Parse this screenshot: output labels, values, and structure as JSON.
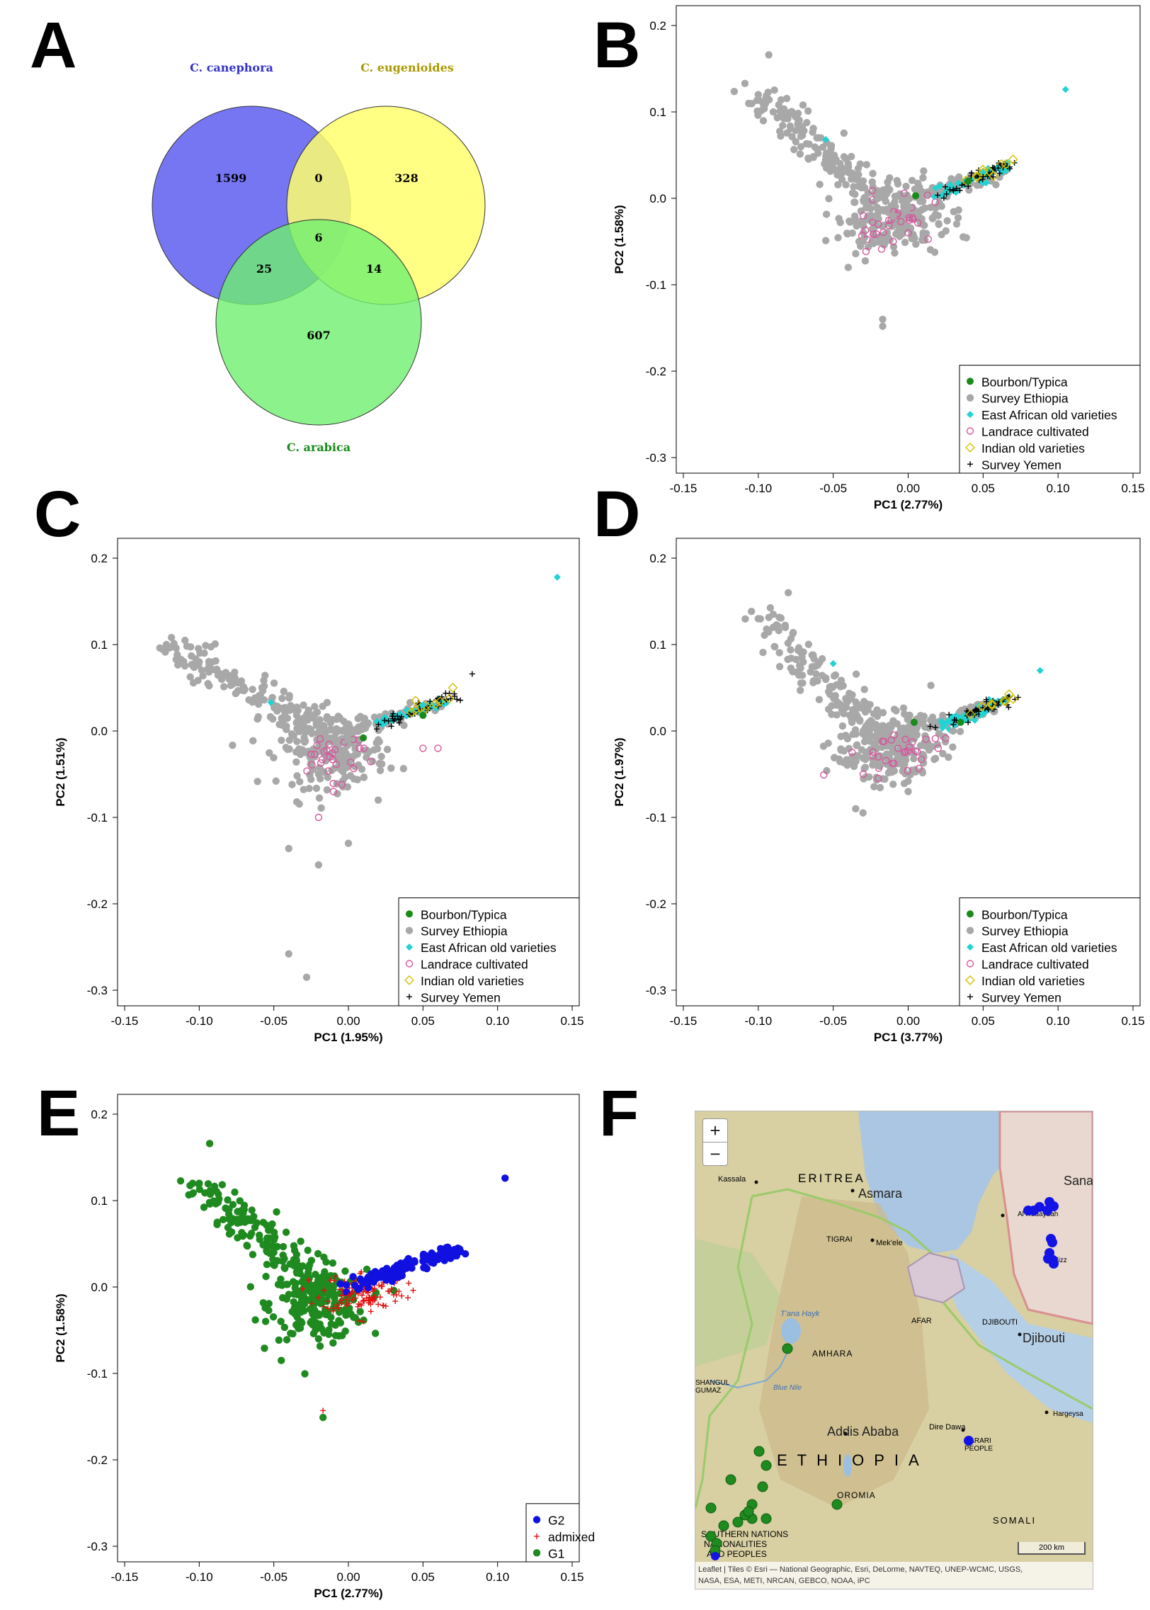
{
  "panels": {
    "A": "A",
    "B": "B",
    "C": "C",
    "D": "D",
    "E": "E",
    "F": "F"
  },
  "venn": {
    "labels": [
      "C. canephora",
      "C. eugenioides",
      "C. arabica"
    ],
    "label_colors": [
      "#3333cc",
      "#b3a300",
      "#1a8a1a"
    ],
    "counts": {
      "canephora_only": "1599",
      "eugenioides_only": "328",
      "arabica_only": "607",
      "can_eug": "0",
      "can_ara": "25",
      "eug_ara": "14",
      "all": "6"
    },
    "colors": {
      "canephora": "#6f6ff2",
      "eugenioides": "#ffff6f",
      "arabica": "#6ff06f"
    }
  },
  "legend_pca": [
    "Bourbon/Typica",
    "Survey Ethiopia",
    "East African old varieties",
    "Landrace cultivated",
    "Indian old varieties",
    "Survey Yemen"
  ],
  "legend_groups": [
    "G2",
    "admixed",
    "G1"
  ],
  "colors": {
    "bourbon": "#1a8a1a",
    "ethiopia": "#a8a8a8",
    "eastafrica": "#22d3d3",
    "landrace": "#d6579e",
    "indian": "#d4c000",
    "yemen": "#000000",
    "g1": "#1f8a1f",
    "g2": "#1010e0",
    "admixed": "#e01010"
  },
  "chart_data": [
    {
      "panel": "B",
      "type": "scatter",
      "xlabel": "PC1 (2.77%)",
      "ylabel": "PC2 (1.58%)",
      "xlim": [
        -0.15,
        0.15
      ],
      "ylim": [
        -0.3,
        0.2
      ],
      "xticks": [
        "-0.15",
        "-0.10",
        "-0.05",
        "0.00",
        "0.05",
        "0.10",
        "0.15"
      ],
      "yticks": [
        "-0.3",
        "-0.2",
        "-0.1",
        "0.0",
        "0.1",
        "0.2"
      ],
      "legend_position": "bottom-right",
      "series": [
        {
          "name": "Survey Ethiopia",
          "points": [
            [
              -0.093,
              0.166
            ],
            [
              -0.1,
              0.12
            ],
            [
              -0.09,
              0.1
            ],
            [
              -0.06,
              0.07
            ],
            [
              -0.04,
              0.04
            ],
            [
              -0.03,
              0.02
            ],
            [
              -0.02,
              0.0
            ],
            [
              -0.01,
              -0.02
            ],
            [
              0.0,
              -0.01
            ],
            [
              -0.03,
              -0.05
            ],
            [
              -0.04,
              -0.08
            ],
            [
              -0.017,
              -0.14
            ],
            [
              -0.017,
              -0.148
            ],
            [
              0.01,
              -0.04
            ],
            [
              0.02,
              -0.02
            ]
          ]
        },
        {
          "name": "East African old varieties",
          "points": [
            [
              0.105,
              0.126
            ],
            [
              -0.055,
              0.068
            ],
            [
              0.04,
              0.02
            ],
            [
              0.05,
              0.03
            ],
            [
              0.06,
              0.035
            ]
          ]
        },
        {
          "name": "Landrace cultivated",
          "points": [
            [
              -0.02,
              -0.03
            ],
            [
              -0.01,
              -0.05
            ],
            [
              -0.03,
              -0.02
            ],
            [
              0.0,
              -0.04
            ]
          ]
        },
        {
          "name": "Indian old varieties",
          "points": [
            [
              0.07,
              0.045
            ],
            [
              0.05,
              0.03
            ]
          ]
        },
        {
          "name": "Survey Yemen",
          "points": [
            [
              0.03,
              0.01
            ],
            [
              0.05,
              0.025
            ],
            [
              0.06,
              0.035
            ]
          ]
        },
        {
          "name": "Bourbon/Typica",
          "points": [
            [
              0.005,
              0.003
            ],
            [
              0.04,
              0.02
            ]
          ]
        }
      ]
    },
    {
      "panel": "C",
      "type": "scatter",
      "xlabel": "PC1 (1.95%)",
      "ylabel": "PC2 (1.51%)",
      "xlim": [
        -0.15,
        0.15
      ],
      "ylim": [
        -0.3,
        0.2
      ],
      "xticks": [
        "-0.15",
        "-0.10",
        "-0.05",
        "0.00",
        "0.05",
        "0.10",
        "0.15"
      ],
      "yticks": [
        "-0.3",
        "-0.2",
        "-0.1",
        "0.0",
        "0.1",
        "0.2"
      ],
      "legend_position": "bottom-right",
      "series": [
        {
          "name": "Survey Ethiopia",
          "points": [
            [
              -0.122,
              0.1
            ],
            [
              -0.1,
              0.08
            ],
            [
              -0.08,
              0.06
            ],
            [
              -0.05,
              0.03
            ],
            [
              -0.03,
              0.0
            ],
            [
              0.0,
              -0.01
            ],
            [
              -0.02,
              -0.05
            ],
            [
              -0.028,
              -0.285
            ],
            [
              -0.04,
              -0.258
            ],
            [
              -0.02,
              -0.155
            ],
            [
              0.0,
              -0.13
            ],
            [
              -0.04,
              -0.136
            ],
            [
              0.02,
              -0.08
            ]
          ]
        },
        {
          "name": "East African old varieties",
          "points": [
            [
              0.14,
              0.178
            ],
            [
              -0.052,
              0.033
            ],
            [
              0.05,
              0.03
            ]
          ]
        },
        {
          "name": "Landrace cultivated",
          "points": [
            [
              -0.01,
              -0.07
            ],
            [
              -0.02,
              -0.1
            ],
            [
              0.05,
              -0.02
            ],
            [
              0.06,
              -0.02
            ]
          ]
        },
        {
          "name": "Indian old varieties",
          "points": [
            [
              0.07,
              0.05
            ],
            [
              0.045,
              0.035
            ]
          ]
        },
        {
          "name": "Survey Yemen",
          "points": [
            [
              0.083,
              0.066
            ],
            [
              0.03,
              0.02
            ]
          ]
        },
        {
          "name": "Bourbon/Typica",
          "points": [
            [
              0.01,
              -0.008
            ],
            [
              0.05,
              0.018
            ]
          ]
        }
      ]
    },
    {
      "panel": "D",
      "type": "scatter",
      "xlabel": "PC1 (3.77%)",
      "ylabel": "PC2 (1.97%)",
      "xlim": [
        -0.15,
        0.15
      ],
      "ylim": [
        -0.3,
        0.2
      ],
      "xticks": [
        "-0.15",
        "-0.10",
        "-0.05",
        "0.00",
        "0.05",
        "0.10",
        "0.15"
      ],
      "yticks": [
        "-0.3",
        "-0.2",
        "-0.1",
        "0.0",
        "0.1",
        "0.2"
      ],
      "legend_position": "bottom-right",
      "series": [
        {
          "name": "Survey Ethiopia",
          "points": [
            [
              -0.08,
              0.16
            ],
            [
              -0.1,
              0.13
            ],
            [
              -0.09,
              0.12
            ],
            [
              -0.07,
              0.08
            ],
            [
              -0.05,
              0.04
            ],
            [
              -0.03,
              0.0
            ],
            [
              -0.02,
              -0.04
            ],
            [
              -0.035,
              -0.09
            ],
            [
              0.0,
              -0.07
            ],
            [
              0.03,
              0.0
            ]
          ]
        },
        {
          "name": "East African old varieties",
          "points": [
            [
              0.088,
              0.07
            ],
            [
              -0.05,
              0.078
            ],
            [
              0.05,
              0.02
            ]
          ]
        },
        {
          "name": "Landrace cultivated",
          "points": [
            [
              -0.03,
              -0.05
            ],
            [
              -0.02,
              -0.03
            ],
            [
              0.02,
              -0.02
            ]
          ]
        },
        {
          "name": "Indian old varieties",
          "points": [
            [
              0.07,
              0.037
            ]
          ]
        },
        {
          "name": "Survey Yemen",
          "points": [
            [
              0.04,
              0.01
            ],
            [
              0.06,
              0.03
            ]
          ]
        },
        {
          "name": "Bourbon/Typica",
          "points": [
            [
              0.004,
              0.01
            ],
            [
              0.035,
              0.01
            ]
          ]
        }
      ]
    },
    {
      "panel": "E",
      "type": "scatter",
      "xlabel": "PC1 (2.77%)",
      "ylabel": "PC2 (1.58%)",
      "xlim": [
        -0.15,
        0.15
      ],
      "ylim": [
        -0.3,
        0.2
      ],
      "xticks": [
        "-0.15",
        "-0.10",
        "-0.05",
        "0.00",
        "0.05",
        "0.10",
        "0.15"
      ],
      "yticks": [
        "-0.3",
        "-0.2",
        "-0.1",
        "0.0",
        "0.1",
        "0.2"
      ],
      "legend_position": "bottom-right",
      "series": [
        {
          "name": "G2",
          "points": [
            [
              0.105,
              0.126
            ],
            [
              0.07,
              0.042
            ],
            [
              0.05,
              0.03
            ],
            [
              0.03,
              0.015
            ],
            [
              0.01,
              0.005
            ]
          ]
        },
        {
          "name": "admixed",
          "points": [
            [
              0.0,
              -0.01
            ],
            [
              -0.017,
              -0.143
            ],
            [
              0.01,
              -0.04
            ],
            [
              0.02,
              -0.02
            ]
          ]
        },
        {
          "name": "G1",
          "points": [
            [
              -0.093,
              0.166
            ],
            [
              -0.1,
              0.12
            ],
            [
              -0.08,
              0.09
            ],
            [
              -0.05,
              0.04
            ],
            [
              -0.03,
              -0.01
            ],
            [
              -0.017,
              -0.151
            ],
            [
              -0.045,
              -0.085
            ],
            [
              -0.02,
              -0.06
            ]
          ]
        }
      ]
    }
  ],
  "map": {
    "countries": [
      "ERITREA",
      "ETHIOPIA",
      "SOMALI"
    ],
    "cities": [
      "Asmara",
      "Djibouti",
      "Addis Ababa",
      "Sana"
    ],
    "small_labels": [
      "Kassala",
      "Mek'ele",
      "TIGRAI",
      "AFAR",
      "DJIBOUTI",
      "AMHARA",
      "T'ana Hayk",
      "Blue Nile",
      "SHANGUL GUMAZ",
      "Dire Dawa",
      "HARARI PEOPLE",
      "OROMIA",
      "Hargeysa",
      "Al Hudaydah",
      "Ta'izz"
    ],
    "regions_multiline": [
      "SOUTHERN NATIONS",
      "NATIONALITIES",
      "AND PEOPLES"
    ],
    "zoom_in": "+",
    "zoom_out": "−",
    "scale": "200 km",
    "attribution_line1": "Leaflet | Tiles © Esri — National Geographic, Esri, DeLorme, NAVTEQ, UNEP-WCMC, USGS,",
    "attribution_line2": "NASA, ESA, METI, NRCAN, GEBCO, NOAA, iPC"
  }
}
